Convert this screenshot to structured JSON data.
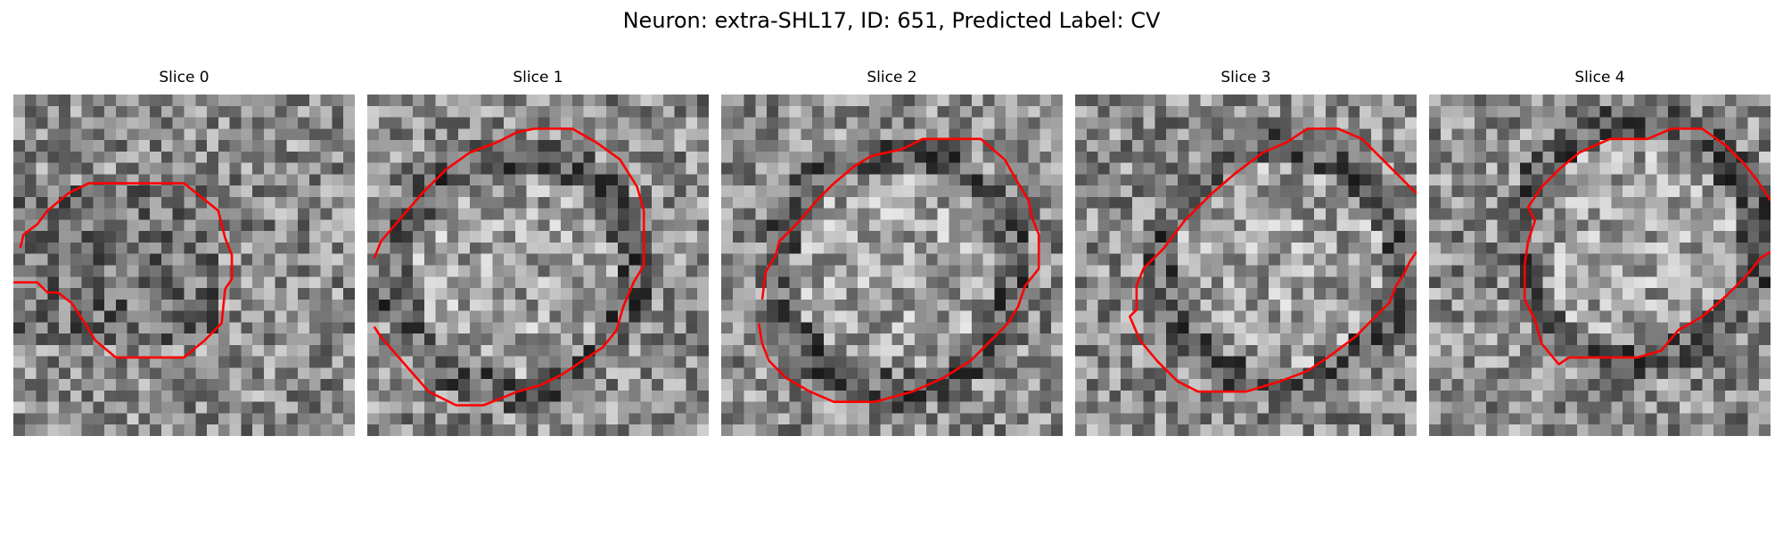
{
  "figure": {
    "title": "Neuron: extra-SHL17, ID: 651, Predicted Label: CV",
    "contour_color": "#ff0000"
  },
  "slices": [
    {
      "label": "Slice 0"
    },
    {
      "label": "Slice 1"
    },
    {
      "label": "Slice 2"
    },
    {
      "label": "Slice 3"
    },
    {
      "label": "Slice 4"
    }
  ]
}
